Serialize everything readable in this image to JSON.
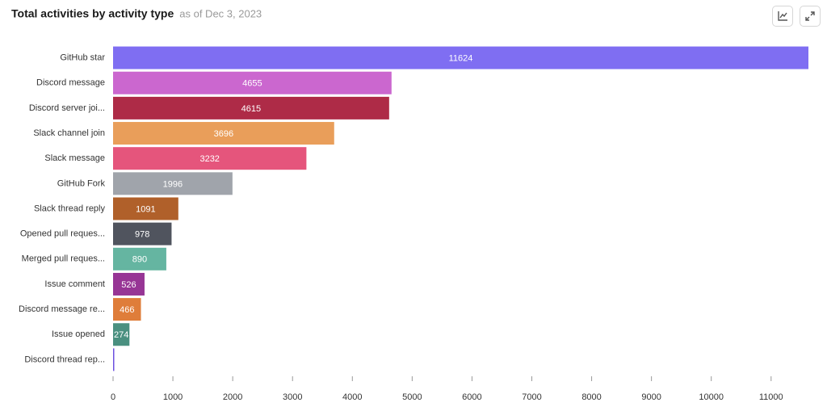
{
  "chart_data": {
    "type": "hbar",
    "title": "Total activities by activity type",
    "subtitle": "as of Dec 3, 2023",
    "categories": [
      "GitHub star",
      "Discord message",
      "Discord server joi...",
      "Slack channel join",
      "Slack message",
      "GitHub Fork",
      "Slack thread reply",
      "Opened pull reques...",
      "Merged pull reques...",
      "Issue comment",
      "Discord message re...",
      "Issue opened",
      "Discord thread rep..."
    ],
    "values": [
      11624,
      4655,
      4615,
      3696,
      3232,
      1996,
      1091,
      978,
      890,
      526,
      466,
      274,
      20
    ],
    "colors": [
      "#7f6ef2",
      "#cb67cf",
      "#ae2b47",
      "#e99e5a",
      "#e5557c",
      "#a0a4ab",
      "#b0602a",
      "#50545e",
      "#65b5a1",
      "#973595",
      "#df7d3a",
      "#4a9080",
      "#6b4fe0"
    ],
    "xlim": [
      0,
      11624
    ],
    "xticks": [
      0,
      1000,
      2000,
      3000,
      4000,
      5000,
      6000,
      7000,
      8000,
      9000,
      10000,
      11000
    ]
  }
}
